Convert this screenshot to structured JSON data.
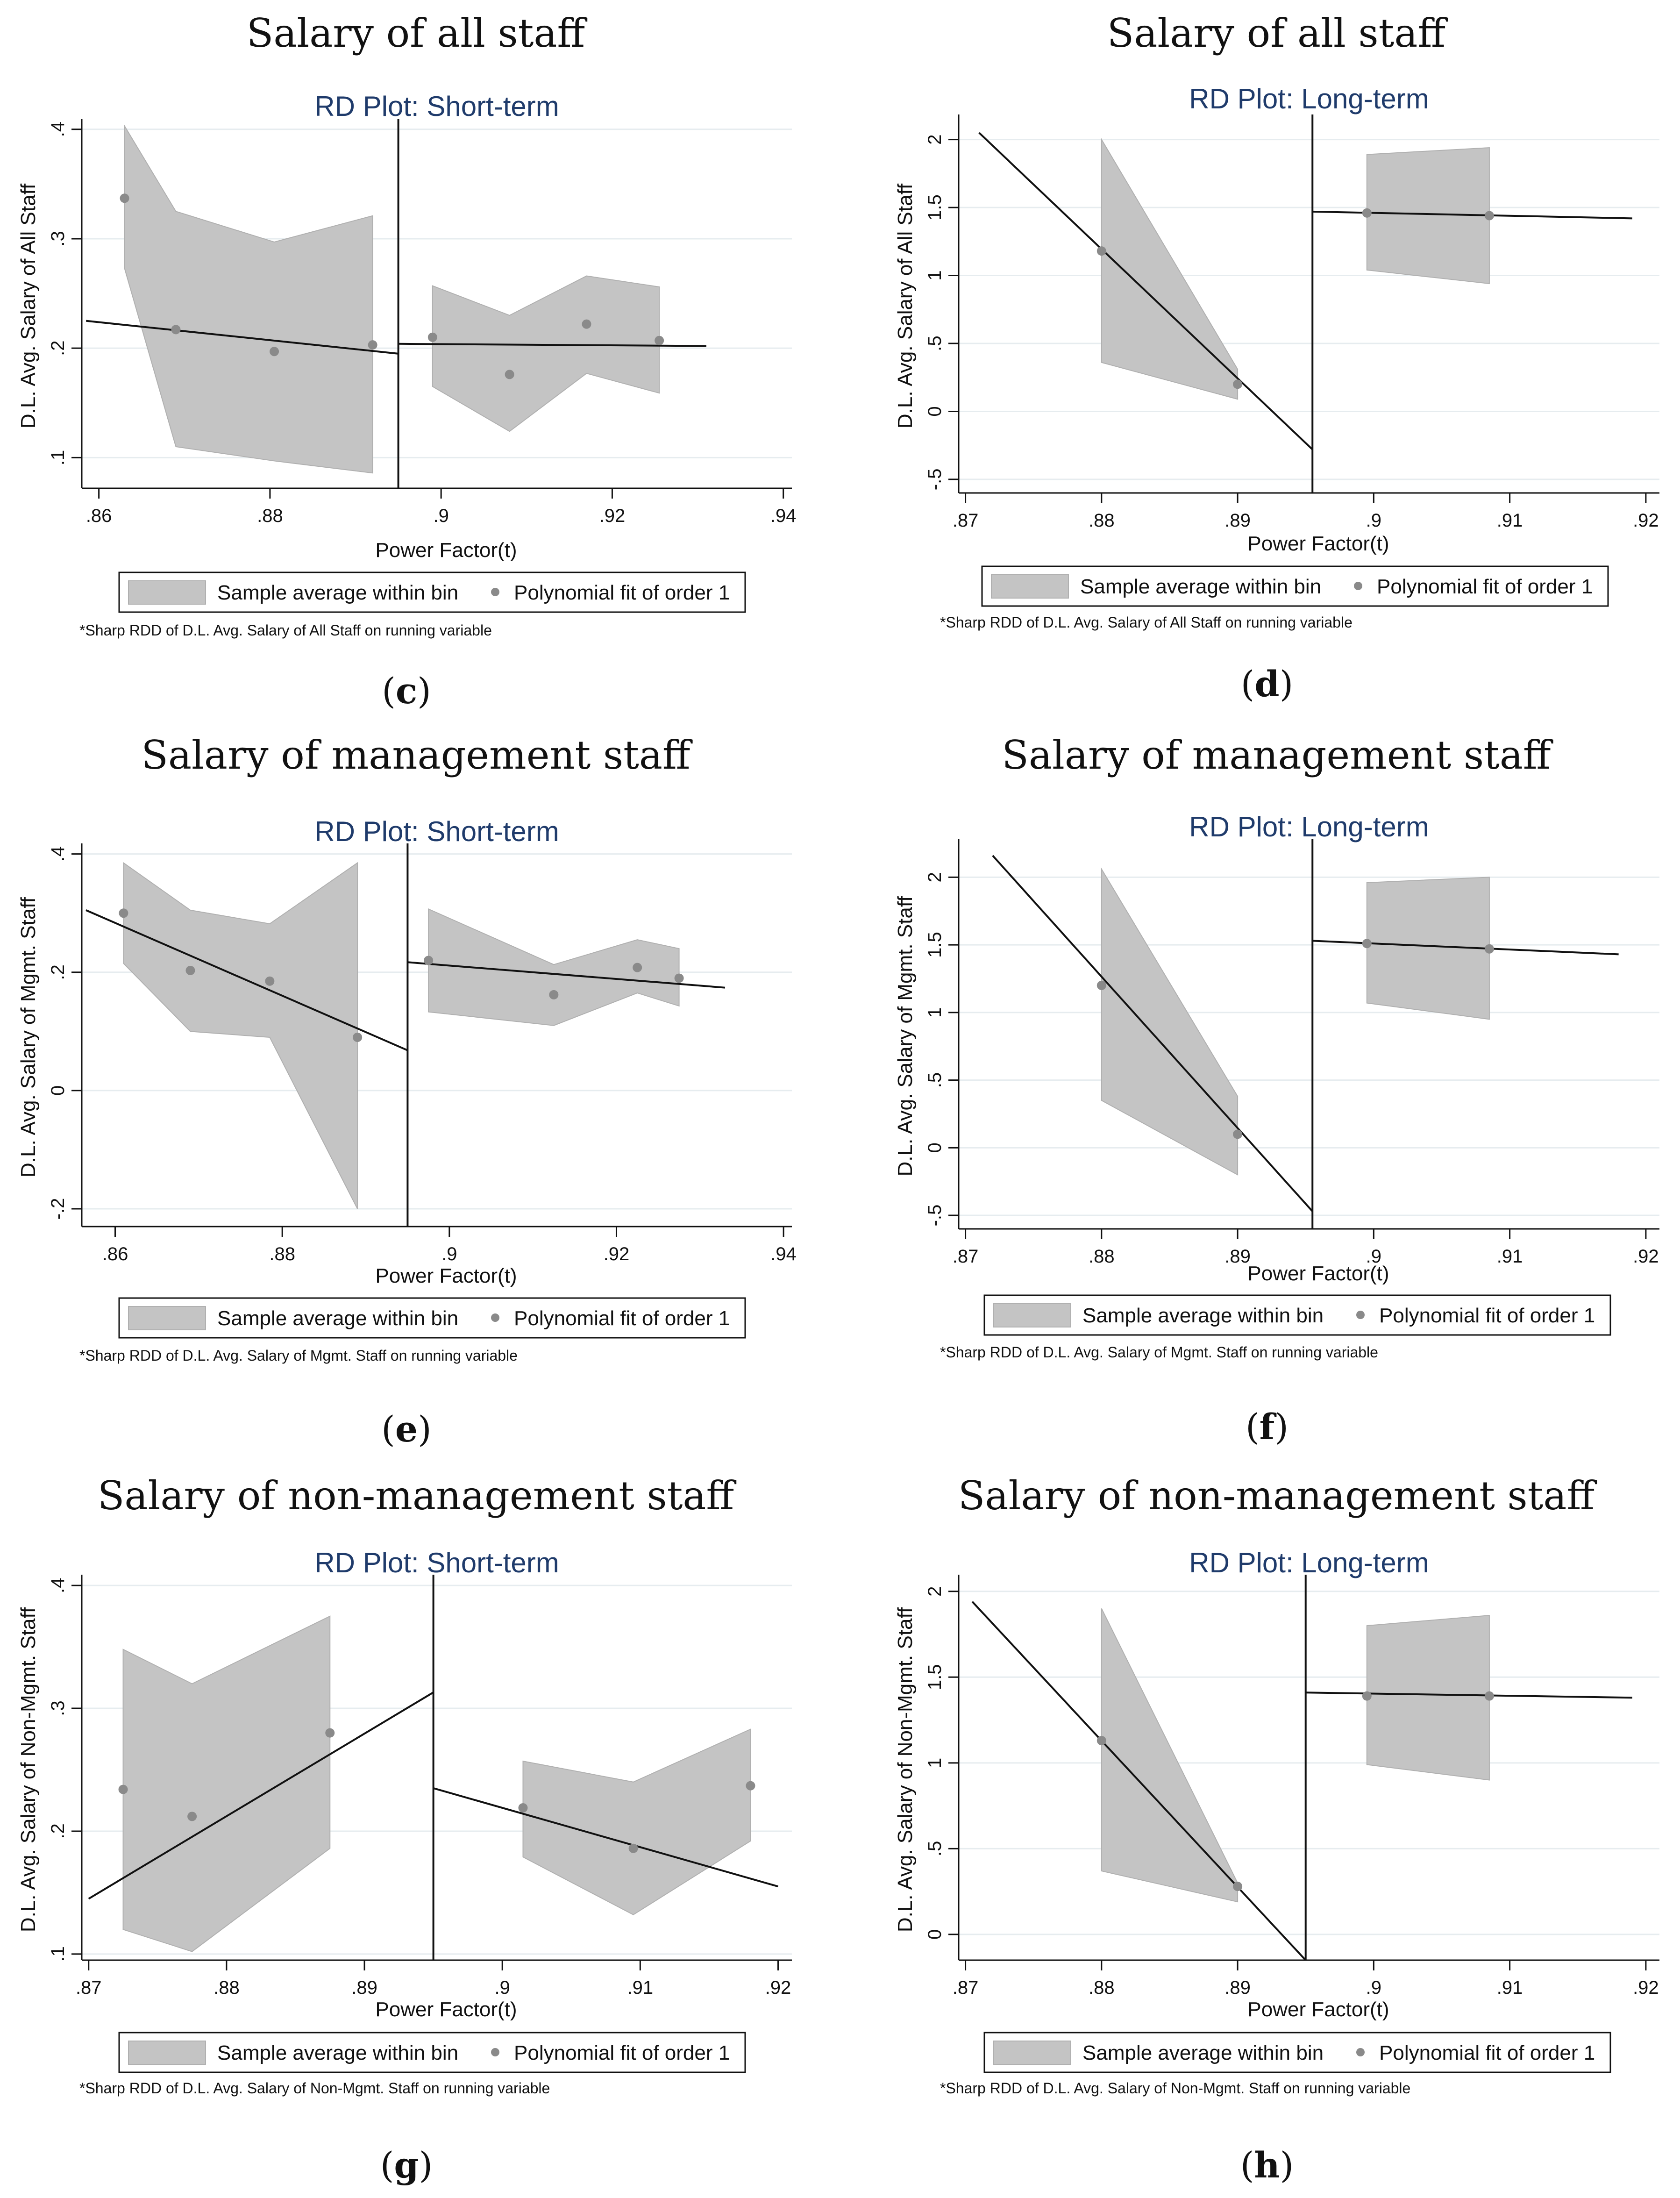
{
  "chart_data": [
    {
      "panel": "c",
      "type": "scatter",
      "title": "Salary of all staff",
      "subtitle": "RD Plot: Short-term",
      "xlabel": "Power Factor(t)",
      "ylabel": "D.L. Avg. Salary of All Staff",
      "xlim": [
        0.858,
        0.941
      ],
      "ylim": [
        0.072,
        0.405
      ],
      "xticks": [
        {
          "v": 0.86,
          "label": ".86"
        },
        {
          "v": 0.88,
          "label": ".88"
        },
        {
          "v": 0.9,
          "label": ".9"
        },
        {
          "v": 0.92,
          "label": ".92"
        },
        {
          "v": 0.94,
          "label": ".94"
        }
      ],
      "yticks": [
        {
          "v": 0.1,
          "label": ".1"
        },
        {
          "v": 0.2,
          "label": ".2"
        },
        {
          "v": 0.3,
          "label": ".3"
        },
        {
          "v": 0.4,
          "label": ".4"
        }
      ],
      "cutoff": 0.895,
      "left": {
        "band_x": [
          0.863,
          0.869,
          0.8805,
          0.892
        ],
        "band_upper": [
          0.403,
          0.325,
          0.297,
          0.321
        ],
        "band_lower": [
          0.273,
          0.11,
          0.097,
          0.086
        ],
        "points_x": [
          0.863,
          0.869,
          0.8805,
          0.892
        ],
        "points_y": [
          0.337,
          0.217,
          0.197,
          0.203
        ],
        "fit": {
          "x": [
            0.8585,
            0.895
          ],
          "y": [
            0.225,
            0.195
          ]
        }
      },
      "right": {
        "band_x": [
          0.899,
          0.908,
          0.917,
          0.9255
        ],
        "band_upper": [
          0.257,
          0.23,
          0.266,
          0.256
        ],
        "band_lower": [
          0.165,
          0.124,
          0.177,
          0.159
        ],
        "points_x": [
          0.899,
          0.908,
          0.917,
          0.9255
        ],
        "points_y": [
          0.21,
          0.176,
          0.222,
          0.207
        ],
        "fit": {
          "x": [
            0.895,
            0.931
          ],
          "y": [
            0.204,
            0.202
          ]
        }
      },
      "legend": [
        "Sample average within bin",
        "Polynomial fit of order 1"
      ],
      "note": "*Sharp RDD of D.L. Avg. Salary of All Staff on running variable",
      "label": "c"
    },
    {
      "panel": "d",
      "type": "scatter",
      "title": "Salary of all staff",
      "subtitle": "RD Plot: Long-term",
      "xlabel": "Power Factor(t)",
      "ylabel": "D.L. Avg. Salary of All Staff",
      "xlim": [
        0.8695,
        0.921
      ],
      "ylim": [
        -0.6,
        2.15
      ],
      "xticks": [
        {
          "v": 0.87,
          "label": ".87"
        },
        {
          "v": 0.88,
          "label": ".88"
        },
        {
          "v": 0.89,
          "label": ".89"
        },
        {
          "v": 0.9,
          "label": ".9"
        },
        {
          "v": 0.91,
          "label": ".91"
        },
        {
          "v": 0.92,
          "label": ".92"
        }
      ],
      "yticks": [
        {
          "v": -0.5,
          "label": "-.5"
        },
        {
          "v": 0,
          "label": "0"
        },
        {
          "v": 0.5,
          "label": ".5"
        },
        {
          "v": 1,
          "label": "1"
        },
        {
          "v": 1.5,
          "label": "1.5"
        },
        {
          "v": 2,
          "label": "2"
        }
      ],
      "cutoff": 0.8955,
      "left": {
        "band_x": [
          0.88,
          0.89
        ],
        "band_upper": [
          2.0,
          0.31
        ],
        "band_lower": [
          0.36,
          0.09
        ],
        "points_x": [
          0.88,
          0.89
        ],
        "points_y": [
          1.18,
          0.2
        ],
        "fit": {
          "x": [
            0.871,
            0.8955
          ],
          "y": [
            2.05,
            -0.28
          ]
        }
      },
      "right": {
        "band_x": [
          0.8995,
          0.9085
        ],
        "band_upper": [
          1.89,
          1.94
        ],
        "band_lower": [
          1.04,
          0.94
        ],
        "points_x": [
          0.8995,
          0.9085
        ],
        "points_y": [
          1.46,
          1.44
        ],
        "fit": {
          "x": [
            0.8955,
            0.919
          ],
          "y": [
            1.47,
            1.42
          ]
        }
      },
      "legend": [
        "Sample average within bin",
        "Polynomial fit of order 1"
      ],
      "note": "*Sharp RDD of D.L. Avg. Salary of All Staff on running variable",
      "label": "d"
    },
    {
      "panel": "e",
      "type": "scatter",
      "title": "Salary of management staff",
      "subtitle": "RD Plot: Short-term",
      "xlabel": "Power Factor(t)",
      "ylabel": "D.L. Avg. Salary of Mgmt. Staff",
      "xlim": [
        0.856,
        0.941
      ],
      "ylim": [
        -0.23,
        0.41
      ],
      "xticks": [
        {
          "v": 0.86,
          "label": ".86"
        },
        {
          "v": 0.88,
          "label": ".88"
        },
        {
          "v": 0.9,
          "label": ".9"
        },
        {
          "v": 0.92,
          "label": ".92"
        },
        {
          "v": 0.94,
          "label": ".94"
        }
      ],
      "yticks": [
        {
          "v": -0.2,
          "label": "-.2"
        },
        {
          "v": 0,
          "label": "0"
        },
        {
          "v": 0.2,
          "label": ".2"
        },
        {
          "v": 0.4,
          "label": ".4"
        }
      ],
      "cutoff": 0.895,
      "left": {
        "band_x": [
          0.861,
          0.869,
          0.8785,
          0.889
        ],
        "band_upper": [
          0.385,
          0.305,
          0.282,
          0.385
        ],
        "band_lower": [
          0.215,
          0.1,
          0.09,
          -0.2
        ],
        "points_x": [
          0.861,
          0.869,
          0.8785,
          0.889
        ],
        "points_y": [
          0.3,
          0.203,
          0.185,
          0.09
        ],
        "fit": {
          "x": [
            0.8565,
            0.895
          ],
          "y": [
            0.305,
            0.068
          ]
        }
      },
      "right": {
        "band_x": [
          0.8975,
          0.9125,
          0.9225,
          0.9275
        ],
        "band_upper": [
          0.307,
          0.213,
          0.255,
          0.24
        ],
        "band_lower": [
          0.133,
          0.11,
          0.165,
          0.143
        ],
        "points_x": [
          0.8975,
          0.9125,
          0.9225,
          0.9275
        ],
        "points_y": [
          0.22,
          0.162,
          0.208,
          0.19
        ],
        "fit": {
          "x": [
            0.895,
            0.933
          ],
          "y": [
            0.217,
            0.174
          ]
        }
      },
      "legend": [
        "Sample average within bin",
        "Polynomial fit of order 1"
      ],
      "note": "*Sharp RDD of D.L. Avg. Salary of Mgmt. Staff on running variable",
      "label": "e"
    },
    {
      "panel": "f",
      "type": "scatter",
      "title": "Salary of management staff",
      "subtitle": "RD Plot: Long-term",
      "xlabel": "Power Factor(t)",
      "ylabel": "D.L. Avg. Salary of Mgmt. Staff",
      "xlim": [
        0.8695,
        0.921
      ],
      "ylim": [
        -0.6,
        2.25
      ],
      "xticks": [
        {
          "v": 0.87,
          "label": ".87"
        },
        {
          "v": 0.88,
          "label": ".88"
        },
        {
          "v": 0.89,
          "label": ".89"
        },
        {
          "v": 0.9,
          "label": ".9"
        },
        {
          "v": 0.91,
          "label": ".91"
        },
        {
          "v": 0.92,
          "label": ".92"
        }
      ],
      "yticks": [
        {
          "v": -0.5,
          "label": "-.5"
        },
        {
          "v": 0,
          "label": "0"
        },
        {
          "v": 0.5,
          "label": ".5"
        },
        {
          "v": 1,
          "label": "1"
        },
        {
          "v": 1.5,
          "label": "1.5"
        },
        {
          "v": 2,
          "label": "2"
        }
      ],
      "cutoff": 0.8955,
      "left": {
        "band_x": [
          0.88,
          0.89
        ],
        "band_upper": [
          2.06,
          0.38
        ],
        "band_lower": [
          0.35,
          -0.2
        ],
        "points_x": [
          0.88,
          0.89
        ],
        "points_y": [
          1.2,
          0.1
        ],
        "fit": {
          "x": [
            0.872,
            0.8955
          ],
          "y": [
            2.16,
            -0.47
          ]
        }
      },
      "right": {
        "band_x": [
          0.8995,
          0.9085
        ],
        "band_upper": [
          1.96,
          2.0
        ],
        "band_lower": [
          1.07,
          0.95
        ],
        "points_x": [
          0.8995,
          0.9085
        ],
        "points_y": [
          1.51,
          1.47
        ],
        "fit": {
          "x": [
            0.8955,
            0.918
          ],
          "y": [
            1.53,
            1.43
          ]
        }
      },
      "legend": [
        "Sample average within bin",
        "Polynomial fit of order 1"
      ],
      "note": "*Sharp RDD of D.L. Avg. Salary of Mgmt. Staff on running variable",
      "label": "f"
    },
    {
      "panel": "g",
      "type": "scatter",
      "title": "Salary of non-management staff",
      "subtitle": "RD Plot: Short-term",
      "xlabel": "Power Factor(t)",
      "ylabel": "D.L. Avg. Salary of Non-Mgmt. Staff",
      "xlim": [
        0.8695,
        0.921
      ],
      "ylim": [
        0.095,
        0.405
      ],
      "xticks": [
        {
          "v": 0.87,
          "label": ".87"
        },
        {
          "v": 0.88,
          "label": ".88"
        },
        {
          "v": 0.89,
          "label": ".89"
        },
        {
          "v": 0.9,
          "label": ".9"
        },
        {
          "v": 0.91,
          "label": ".91"
        },
        {
          "v": 0.92,
          "label": ".92"
        }
      ],
      "yticks": [
        {
          "v": 0.1,
          "label": ".1"
        },
        {
          "v": 0.2,
          "label": ".2"
        },
        {
          "v": 0.3,
          "label": ".3"
        },
        {
          "v": 0.4,
          "label": ".4"
        }
      ],
      "cutoff": 0.895,
      "left": {
        "band_x": [
          0.8725,
          0.8775,
          0.8875
        ],
        "band_upper": [
          0.348,
          0.32,
          0.375
        ],
        "band_lower": [
          0.12,
          0.102,
          0.186
        ],
        "points_x": [
          0.8725,
          0.8775,
          0.8875
        ],
        "points_y": [
          0.234,
          0.212,
          0.28
        ],
        "fit": {
          "x": [
            0.87,
            0.895
          ],
          "y": [
            0.145,
            0.313
          ]
        }
      },
      "right": {
        "band_x": [
          0.9015,
          0.9095,
          0.918
        ],
        "band_upper": [
          0.257,
          0.24,
          0.283
        ],
        "band_lower": [
          0.179,
          0.132,
          0.192
        ],
        "points_x": [
          0.9015,
          0.9095,
          0.918
        ],
        "points_y": [
          0.219,
          0.186,
          0.237
        ],
        "fit": {
          "x": [
            0.895,
            0.92
          ],
          "y": [
            0.235,
            0.155
          ]
        }
      },
      "legend": [
        "Sample average within bin",
        "Polynomial fit of order 1"
      ],
      "note": "*Sharp RDD of D.L. Avg. Salary of Non-Mgmt. Staff on running variable",
      "label": "g"
    },
    {
      "panel": "h",
      "type": "scatter",
      "title": "Salary of non-management staff",
      "subtitle": "RD Plot: Long-term",
      "xlabel": "Power Factor(t)",
      "ylabel": "D.L. Avg. Salary of Non-Mgmt. Staff",
      "xlim": [
        0.8695,
        0.921
      ],
      "ylim": [
        -0.15,
        2.07
      ],
      "xticks": [
        {
          "v": 0.87,
          "label": ".87"
        },
        {
          "v": 0.88,
          "label": ".88"
        },
        {
          "v": 0.89,
          "label": ".89"
        },
        {
          "v": 0.9,
          "label": ".9"
        },
        {
          "v": 0.91,
          "label": ".91"
        },
        {
          "v": 0.92,
          "label": ".92"
        }
      ],
      "yticks": [
        {
          "v": 0,
          "label": "0"
        },
        {
          "v": 0.5,
          "label": ".5"
        },
        {
          "v": 1,
          "label": "1"
        },
        {
          "v": 1.5,
          "label": "1.5"
        },
        {
          "v": 2,
          "label": "2"
        }
      ],
      "cutoff": 0.895,
      "left": {
        "band_x": [
          0.88,
          0.89
        ],
        "band_upper": [
          1.9,
          0.3
        ],
        "band_lower": [
          0.37,
          0.19
        ],
        "points_x": [
          0.88,
          0.89
        ],
        "points_y": [
          1.13,
          0.28
        ],
        "fit": {
          "x": [
            0.8705,
            0.895
          ],
          "y": [
            1.94,
            -0.15
          ]
        }
      },
      "right": {
        "band_x": [
          0.8995,
          0.9085
        ],
        "band_upper": [
          1.8,
          1.86
        ],
        "band_lower": [
          0.99,
          0.9
        ],
        "points_x": [
          0.8995,
          0.9085
        ],
        "points_y": [
          1.39,
          1.39
        ],
        "fit": {
          "x": [
            0.895,
            0.919
          ],
          "y": [
            1.41,
            1.38
          ]
        }
      },
      "legend": [
        "Sample average within bin",
        "Polynomial fit of order 1"
      ],
      "note": "*Sharp RDD of D.L. Avg. Salary of Non-Mgmt. Staff on running variable",
      "label": "h"
    }
  ]
}
